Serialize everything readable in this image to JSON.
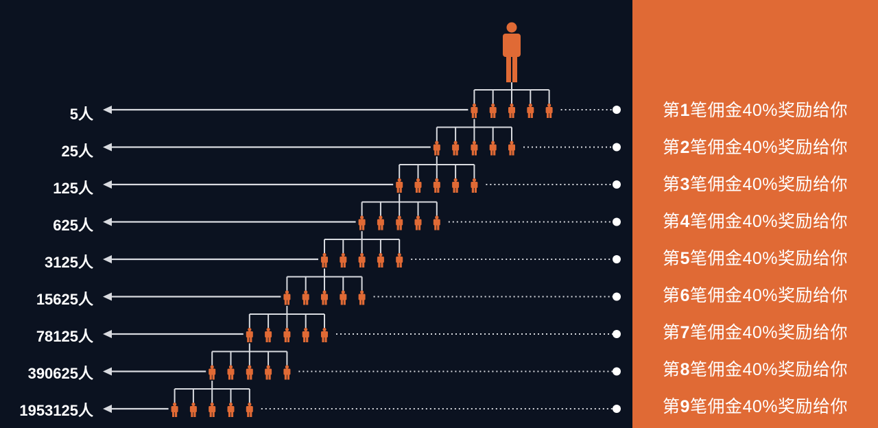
{
  "colors": {
    "background": "#0b1220",
    "panel": "#e06a35",
    "figure": "#e06a35",
    "line": "#d9dbe0"
  },
  "icons": {
    "person": "person-icon",
    "arrow": "arrow-left-icon",
    "dot": "dot-icon"
  },
  "levels": [
    {
      "count": "5人",
      "reward_prefix": "第",
      "reward_num": "1",
      "reward_suffix": "笔佣金40%奖励给你"
    },
    {
      "count": "25人",
      "reward_prefix": "第",
      "reward_num": "2",
      "reward_suffix": "笔佣金40%奖励给你"
    },
    {
      "count": "125人",
      "reward_prefix": "第",
      "reward_num": "3",
      "reward_suffix": "笔佣金40%奖励给你"
    },
    {
      "count": "625人",
      "reward_prefix": "第",
      "reward_num": "4",
      "reward_suffix": "笔佣金40%奖励给你"
    },
    {
      "count": "3125人",
      "reward_prefix": "第",
      "reward_num": "5",
      "reward_suffix": "笔佣金40%奖励给你"
    },
    {
      "count": "15625人",
      "reward_prefix": "第",
      "reward_num": "6",
      "reward_suffix": "笔佣金40%奖励给你"
    },
    {
      "count": "78125人",
      "reward_prefix": "第",
      "reward_num": "7",
      "reward_suffix": "笔佣金40%奖励给你"
    },
    {
      "count": "390625人",
      "reward_prefix": "第",
      "reward_num": "8",
      "reward_suffix": "笔佣金40%奖励给你"
    },
    {
      "count": "1953125人",
      "reward_prefix": "第",
      "reward_num": "9",
      "reward_suffix": "笔佣金40%奖励给你"
    }
  ]
}
